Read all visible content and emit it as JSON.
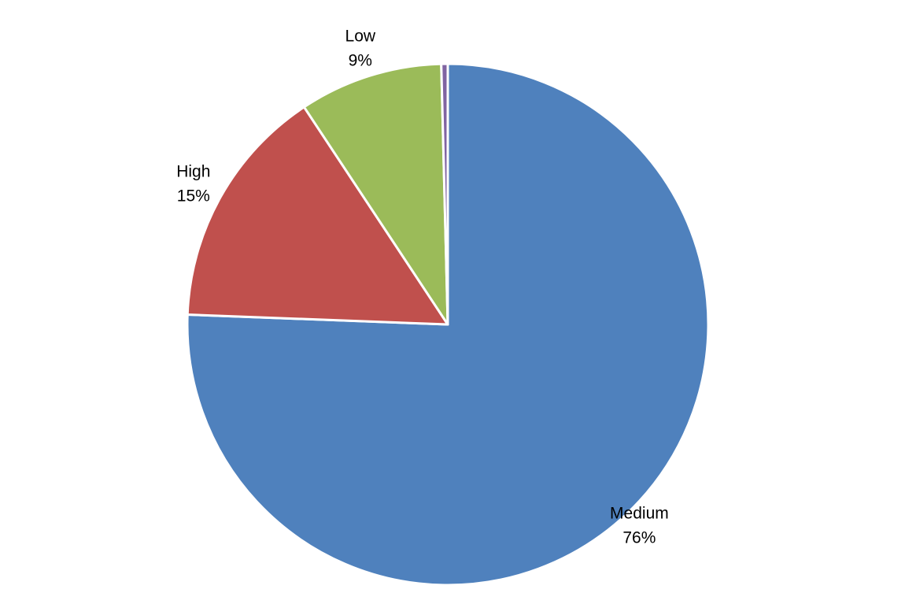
{
  "chart_data": {
    "type": "pie",
    "title": "",
    "start_angle_deg": 0,
    "direction": "clockwise",
    "legend": "none",
    "slices": [
      {
        "label": "Medium",
        "value": 75.6,
        "display": "76%",
        "color": "#4F81BD"
      },
      {
        "label": "High",
        "value": 15.1,
        "display": "15%",
        "color": "#C0504D"
      },
      {
        "label": "Low",
        "value": 8.9,
        "display": "9%",
        "color": "#9BBB59"
      },
      {
        "label": "",
        "value": 0.4,
        "display": "",
        "color": "#8064A2"
      }
    ]
  }
}
